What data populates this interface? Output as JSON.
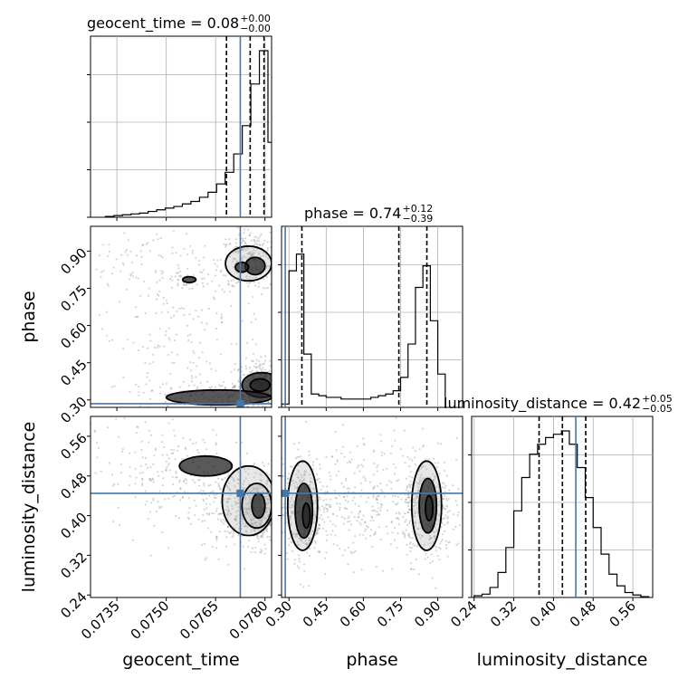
{
  "chart_data": {
    "type": "corner",
    "truth_color": "#4477aa",
    "parameters": [
      {
        "name": "geocent_time",
        "ticks": [
          "0.0735",
          "0.0750",
          "0.0765",
          "0.0780"
        ],
        "tick_values": [
          0.0735,
          0.075,
          0.0765,
          0.078
        ],
        "range": [
          0.0727,
          0.0782
        ],
        "truth": 0.07725
      },
      {
        "name": "phase",
        "ticks": [
          "0.30",
          "0.45",
          "0.60",
          "0.75",
          "0.90"
        ],
        "tick_values": [
          0.3,
          0.45,
          0.6,
          0.75,
          0.9
        ],
        "range": [
          0.27,
          1.0
        ],
        "truth": 0.285
      },
      {
        "name": "luminosity_distance",
        "ticks": [
          "0.24",
          "0.32",
          "0.40",
          "0.48",
          "0.56"
        ],
        "tick_values": [
          0.24,
          0.32,
          0.4,
          0.48,
          0.56
        ],
        "range": [
          0.235,
          0.6
        ],
        "truth": 0.445
      }
    ],
    "titles": [
      {
        "param": "geocent_time",
        "label": "geocent_time = 0.08",
        "plus": "+0.00",
        "minus": "−0.00"
      },
      {
        "param": "phase",
        "label": "phase = 0.74",
        "plus": "+0.12",
        "minus": "−0.39"
      },
      {
        "param": "luminosity_distance",
        "label": "luminosity_distance = 0.42",
        "plus": "+0.05",
        "minus": "−0.05"
      }
    ],
    "quantiles": {
      "geocent_time": [
        0.07683,
        0.07755,
        0.07797
      ],
      "phase": [
        0.352,
        0.743,
        0.856
      ],
      "luminosity_distance": [
        0.371,
        0.418,
        0.465
      ]
    },
    "histograms": {
      "geocent_time": {
        "edges": [
          0.07315,
          0.07341,
          0.07367,
          0.07393,
          0.07419,
          0.07445,
          0.07471,
          0.07497,
          0.07523,
          0.07549,
          0.07575,
          0.07601,
          0.07627,
          0.07653,
          0.07679,
          0.07705,
          0.07731,
          0.07757,
          0.07783,
          0.07809,
          0.07835
        ],
        "counts": [
          0.005,
          0.01,
          0.015,
          0.02,
          0.025,
          0.035,
          0.045,
          0.055,
          0.065,
          0.08,
          0.095,
          0.12,
          0.15,
          0.2,
          0.27,
          0.38,
          0.55,
          0.8,
          1.0,
          0.45
        ]
      },
      "phase": {
        "edges": [
          0.27,
          0.3,
          0.33,
          0.36,
          0.39,
          0.42,
          0.45,
          0.48,
          0.51,
          0.54,
          0.57,
          0.6,
          0.63,
          0.66,
          0.69,
          0.72,
          0.75,
          0.78,
          0.81,
          0.84,
          0.87,
          0.9,
          0.93
        ],
        "counts": [
          0.02,
          0.82,
          0.92,
          0.32,
          0.08,
          0.07,
          0.06,
          0.06,
          0.05,
          0.05,
          0.05,
          0.05,
          0.06,
          0.07,
          0.08,
          0.1,
          0.18,
          0.38,
          0.72,
          0.85,
          0.52,
          0.2
        ]
      },
      "luminosity_distance": {
        "edges": [
          0.24,
          0.256,
          0.272,
          0.288,
          0.304,
          0.32,
          0.336,
          0.352,
          0.368,
          0.384,
          0.4,
          0.416,
          0.432,
          0.448,
          0.464,
          0.48,
          0.496,
          0.512,
          0.528,
          0.544,
          0.56,
          0.576,
          0.592
        ],
        "counts": [
          0.01,
          0.02,
          0.06,
          0.15,
          0.3,
          0.52,
          0.72,
          0.86,
          0.92,
          0.96,
          0.98,
          1.0,
          0.92,
          0.78,
          0.6,
          0.42,
          0.26,
          0.14,
          0.07,
          0.03,
          0.015,
          0.005
        ]
      }
    },
    "scatter_regions": {
      "geocent_time|phase": [
        {
          "cx": 0.0779,
          "cy": 0.36,
          "sx": 0.0004,
          "sy": 0.05,
          "n": 380
        },
        {
          "cx": 0.0776,
          "cy": 0.86,
          "sx": 0.0005,
          "sy": 0.06,
          "n": 320
        },
        {
          "cx": 0.0765,
          "cy": 0.32,
          "sx": 0.0012,
          "sy": 0.03,
          "n": 160
        },
        {
          "cx": 0.0757,
          "cy": 0.78,
          "sx": 0.0004,
          "sy": 0.02,
          "n": 40
        },
        {
          "cx": 0.0755,
          "cy": 0.55,
          "sx": 0.0013,
          "sy": 0.22,
          "n": 220
        },
        {
          "cx": 0.0742,
          "cy": 0.85,
          "sx": 0.0009,
          "sy": 0.09,
          "n": 60
        }
      ],
      "geocent_time|luminosity_distance": [
        {
          "cx": 0.07785,
          "cy": 0.41,
          "sx": 0.0004,
          "sy": 0.035,
          "n": 480
        },
        {
          "cx": 0.0772,
          "cy": 0.42,
          "sx": 0.0006,
          "sy": 0.05,
          "n": 200
        },
        {
          "cx": 0.0758,
          "cy": 0.47,
          "sx": 0.0012,
          "sy": 0.05,
          "n": 200
        },
        {
          "cx": 0.0743,
          "cy": 0.52,
          "sx": 0.0009,
          "sy": 0.05,
          "n": 80
        }
      ],
      "phase|luminosity_distance": [
        {
          "cx": 0.355,
          "cy": 0.41,
          "sx": 0.04,
          "sy": 0.05,
          "n": 420
        },
        {
          "cx": 0.86,
          "cy": 0.41,
          "sx": 0.05,
          "sy": 0.05,
          "n": 420
        },
        {
          "cx": 0.6,
          "cy": 0.43,
          "sx": 0.16,
          "sy": 0.06,
          "n": 350
        }
      ]
    },
    "contours": {
      "geocent_time|phase": [
        {
          "cx": 0.0779,
          "cy": 0.36,
          "rx": 0.0006,
          "ry": 0.05,
          "rot": 0
        },
        {
          "cx": 0.07785,
          "cy": 0.36,
          "rx": 0.0003,
          "ry": 0.025,
          "rot": 0
        },
        {
          "cx": 0.0775,
          "cy": 0.85,
          "rx": 0.0007,
          "ry": 0.07,
          "rot": 0
        },
        {
          "cx": 0.0777,
          "cy": 0.84,
          "rx": 0.0003,
          "ry": 0.035,
          "rot": 0
        },
        {
          "cx": 0.0766,
          "cy": 0.31,
          "rx": 0.0016,
          "ry": 0.03,
          "rot": 0
        },
        {
          "cx": 0.0757,
          "cy": 0.785,
          "rx": 0.0002,
          "ry": 0.012,
          "rot": 0
        },
        {
          "cx": 0.0773,
          "cy": 0.835,
          "rx": 0.0002,
          "ry": 0.02,
          "rot": 0
        }
      ],
      "geocent_time|luminosity_distance": [
        {
          "cx": 0.0775,
          "cy": 0.43,
          "rx": 0.0008,
          "ry": 0.07,
          "rot": 0
        },
        {
          "cx": 0.07775,
          "cy": 0.42,
          "rx": 0.00045,
          "ry": 0.045,
          "rot": 0
        },
        {
          "cx": 0.0778,
          "cy": 0.42,
          "rx": 0.0002,
          "ry": 0.025,
          "rot": 0
        },
        {
          "cx": 0.0762,
          "cy": 0.5,
          "rx": 0.0008,
          "ry": 0.02,
          "rot": 0
        }
      ],
      "phase|luminosity_distance": [
        {
          "cx": 0.355,
          "cy": 0.42,
          "rx": 0.06,
          "ry": 0.09,
          "rot": 0
        },
        {
          "cx": 0.36,
          "cy": 0.41,
          "rx": 0.035,
          "ry": 0.055,
          "rot": 0
        },
        {
          "cx": 0.37,
          "cy": 0.4,
          "rx": 0.015,
          "ry": 0.025,
          "rot": 0
        },
        {
          "cx": 0.855,
          "cy": 0.42,
          "rx": 0.06,
          "ry": 0.09,
          "rot": 0
        },
        {
          "cx": 0.86,
          "cy": 0.42,
          "rx": 0.035,
          "ry": 0.055,
          "rot": 0
        },
        {
          "cx": 0.865,
          "cy": 0.415,
          "rx": 0.015,
          "ry": 0.025,
          "rot": 0
        }
      ]
    }
  }
}
